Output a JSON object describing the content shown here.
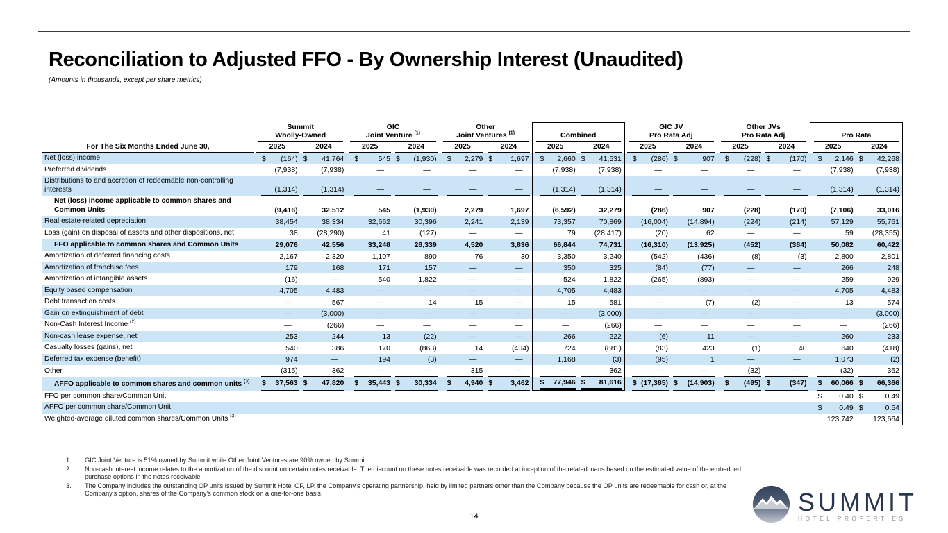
{
  "page": {
    "title": "Reconciliation to Adjusted FFO - By Ownership Interest (Unaudited)",
    "subtitle": "(Amounts in thousands, except per share metrics)",
    "page_number": "14"
  },
  "table": {
    "row_header": "For The Six Months Ended June 30,",
    "years": [
      "2025",
      "2024"
    ],
    "groups": [
      {
        "line1": "Summit",
        "line2": "Wholly-Owned",
        "sup": "",
        "boxed": false
      },
      {
        "line1": "GIC",
        "line2": "Joint Venture",
        "sup": "(1)",
        "boxed": false
      },
      {
        "line1": "Other",
        "line2": "Joint Ventures",
        "sup": "(1)",
        "boxed": false
      },
      {
        "line1": "",
        "line2": "Combined",
        "sup": "",
        "boxed": true
      },
      {
        "line1": "GIC JV",
        "line2": "Pro Rata Adj",
        "sup": "",
        "boxed": false
      },
      {
        "line1": "Other JVs",
        "line2": "Pro Rata Adj",
        "sup": "",
        "boxed": false
      },
      {
        "line1": "",
        "line2": "Pro Rata",
        "sup": "",
        "boxed": true
      }
    ],
    "rows": [
      {
        "label": "Net (loss) income",
        "sup": "",
        "bold": false,
        "indent": false,
        "shade": true,
        "dollar": true,
        "underline": "none",
        "values": [
          "(164)",
          "41,764",
          "545",
          "(1,930)",
          "2,279",
          "1,697",
          "2,660",
          "41,531",
          "(286)",
          "907",
          "(228)",
          "(170)",
          "2,146",
          "42,268"
        ]
      },
      {
        "label": "Preferred dividends",
        "sup": "",
        "bold": false,
        "indent": false,
        "shade": false,
        "dollar": false,
        "underline": "none",
        "values": [
          "(7,938)",
          "(7,938)",
          "—",
          "—",
          "—",
          "—",
          "(7,938)",
          "(7,938)",
          "—",
          "—",
          "—",
          "—",
          "(7,938)",
          "(7,938)"
        ]
      },
      {
        "label": "Distributions to and accretion of redeemable non-controlling interests",
        "sup": "",
        "bold": false,
        "indent": false,
        "shade": true,
        "dollar": false,
        "underline": "single",
        "values": [
          "(1,314)",
          "(1,314)",
          "—",
          "—",
          "—",
          "—",
          "(1,314)",
          "(1,314)",
          "—",
          "—",
          "—",
          "—",
          "(1,314)",
          "(1,314)"
        ]
      },
      {
        "label": "Net (loss) income applicable to common shares and Common Units",
        "sup": "",
        "bold": true,
        "indent": true,
        "shade": false,
        "dollar": false,
        "underline": "none",
        "values": [
          "(9,416)",
          "32,512",
          "545",
          "(1,930)",
          "2,279",
          "1,697",
          "(6,592)",
          "32,279",
          "(286)",
          "907",
          "(228)",
          "(170)",
          "(7,106)",
          "33,016"
        ]
      },
      {
        "label": "Real estate-related depreciation",
        "sup": "",
        "bold": false,
        "indent": false,
        "shade": true,
        "dollar": false,
        "underline": "none",
        "values": [
          "38,454",
          "38,334",
          "32,662",
          "30,396",
          "2,241",
          "2,139",
          "73,357",
          "70,869",
          "(16,004)",
          "(14,894)",
          "(224)",
          "(214)",
          "57,129",
          "55,761"
        ]
      },
      {
        "label": "Loss (gain) on disposal of assets and other dispositions, net",
        "sup": "",
        "bold": false,
        "indent": false,
        "shade": false,
        "dollar": false,
        "underline": "single",
        "values": [
          "38",
          "(28,290)",
          "41",
          "(127)",
          "—",
          "—",
          "79",
          "(28,417)",
          "(20)",
          "62",
          "—",
          "—",
          "59",
          "(28,355)"
        ]
      },
      {
        "label": "FFO applicable to common shares and Common Units",
        "sup": "",
        "bold": true,
        "indent": true,
        "shade": true,
        "dollar": false,
        "underline": "none",
        "values": [
          "29,076",
          "42,556",
          "33,248",
          "28,339",
          "4,520",
          "3,836",
          "66,844",
          "74,731",
          "(16,310)",
          "(13,925)",
          "(452)",
          "(384)",
          "50,082",
          "60,422"
        ]
      },
      {
        "label": "Amortization of deferred financing costs",
        "sup": "",
        "bold": false,
        "indent": false,
        "shade": false,
        "dollar": false,
        "underline": "none",
        "values": [
          "2,167",
          "2,320",
          "1,107",
          "890",
          "76",
          "30",
          "3,350",
          "3,240",
          "(542)",
          "(436)",
          "(8)",
          "(3)",
          "2,800",
          "2,801"
        ]
      },
      {
        "label": "Amortization of franchise fees",
        "sup": "",
        "bold": false,
        "indent": false,
        "shade": true,
        "dollar": false,
        "underline": "none",
        "values": [
          "179",
          "168",
          "171",
          "157",
          "—",
          "—",
          "350",
          "325",
          "(84)",
          "(77)",
          "—",
          "—",
          "266",
          "248"
        ]
      },
      {
        "label": "Amortization of intangible assets",
        "sup": "",
        "bold": false,
        "indent": false,
        "shade": false,
        "dollar": false,
        "underline": "none",
        "values": [
          "(16)",
          "—",
          "540",
          "1,822",
          "—",
          "—",
          "524",
          "1,822",
          "(265)",
          "(893)",
          "—",
          "—",
          "259",
          "929"
        ]
      },
      {
        "label": "Equity based compensation",
        "sup": "",
        "bold": false,
        "indent": false,
        "shade": true,
        "dollar": false,
        "underline": "none",
        "values": [
          "4,705",
          "4,483",
          "—",
          "—",
          "—",
          "—",
          "4,705",
          "4,483",
          "—",
          "—",
          "—",
          "—",
          "4,705",
          "4,483"
        ]
      },
      {
        "label": "Debt transaction costs",
        "sup": "",
        "bold": false,
        "indent": false,
        "shade": false,
        "dollar": false,
        "underline": "none",
        "values": [
          "—",
          "567",
          "—",
          "14",
          "15",
          "—",
          "15",
          "581",
          "—",
          "(7)",
          "(2)",
          "—",
          "13",
          "574"
        ]
      },
      {
        "label": "Gain on extinguishment of debt",
        "sup": "",
        "bold": false,
        "indent": false,
        "shade": true,
        "dollar": false,
        "underline": "none",
        "values": [
          "—",
          "(3,000)",
          "—",
          "—",
          "—",
          "—",
          "—",
          "(3,000)",
          "—",
          "—",
          "—",
          "—",
          "—",
          "(3,000)"
        ]
      },
      {
        "label": "Non-Cash Interest Income",
        "sup": "(2)",
        "bold": false,
        "indent": false,
        "shade": false,
        "dollar": false,
        "underline": "none",
        "values": [
          "—",
          "(266)",
          "—",
          "—",
          "—",
          "—",
          "—",
          "(266)",
          "—",
          "—",
          "—",
          "—",
          "—",
          "(266)"
        ]
      },
      {
        "label": "Non-cash lease expense, net",
        "sup": "",
        "bold": false,
        "indent": false,
        "shade": true,
        "dollar": false,
        "underline": "none",
        "values": [
          "253",
          "244",
          "13",
          "(22)",
          "—",
          "—",
          "266",
          "222",
          "(6)",
          "11",
          "—",
          "—",
          "260",
          "233"
        ]
      },
      {
        "label": "Casualty losses (gains), net",
        "sup": "",
        "bold": false,
        "indent": false,
        "shade": false,
        "dollar": false,
        "underline": "none",
        "values": [
          "540",
          "386",
          "170",
          "(863)",
          "14",
          "(404)",
          "724",
          "(881)",
          "(83)",
          "423",
          "(1)",
          "40",
          "640",
          "(418)"
        ]
      },
      {
        "label": "Deferred tax expense (benefit)",
        "sup": "",
        "bold": false,
        "indent": false,
        "shade": true,
        "dollar": false,
        "underline": "none",
        "values": [
          "974",
          "—",
          "194",
          "(3)",
          "—",
          "—",
          "1,168",
          "(3)",
          "(95)",
          "1",
          "—",
          "—",
          "1,073",
          "(2)"
        ]
      },
      {
        "label": "Other",
        "sup": "",
        "bold": false,
        "indent": false,
        "shade": false,
        "dollar": false,
        "underline": "single",
        "values": [
          "(315)",
          "362",
          "—",
          "—",
          "315",
          "—",
          "—",
          "362",
          "—",
          "—",
          "(32)",
          "—",
          "(32)",
          "362"
        ]
      },
      {
        "label": "AFFO applicable to common shares and common units",
        "sup": "(3)",
        "bold": true,
        "indent": true,
        "shade": true,
        "dollar": true,
        "underline": "double",
        "values": [
          "37,563",
          "47,820",
          "35,443",
          "30,334",
          "4,940",
          "3,462",
          "77,946",
          "81,616",
          "(17,385)",
          "(14,903)",
          "(495)",
          "(347)",
          "60,066",
          "66,366"
        ]
      },
      {
        "label": "FFO per common share/Common Unit",
        "sup": "",
        "bold": false,
        "indent": false,
        "shade": false,
        "dollar": true,
        "underline": "none",
        "values": [
          "",
          "",
          "",
          "",
          "",
          "",
          "",
          "",
          "",
          "",
          "",
          "",
          "0.40",
          "0.49"
        ]
      },
      {
        "label": "AFFO per common share/Common Unit",
        "sup": "",
        "bold": false,
        "indent": false,
        "shade": true,
        "dollar": true,
        "underline": "none",
        "values": [
          "",
          "",
          "",
          "",
          "",
          "",
          "",
          "",
          "",
          "",
          "",
          "",
          "0.49",
          "0.54"
        ]
      },
      {
        "label": "Weighted-average diluted common shares/Common Units",
        "sup": "(3)",
        "bold": false,
        "indent": false,
        "shade": false,
        "dollar": false,
        "underline": "none",
        "values": [
          "",
          "",
          "",
          "",
          "",
          "",
          "",
          "",
          "",
          "",
          "",
          "",
          "123,742",
          "123,664"
        ]
      }
    ]
  },
  "footnotes": [
    {
      "num": "1.",
      "text": "GIC Joint Venture is 51% owned by Summit while Other Joint Ventures are 90% owned by Summit."
    },
    {
      "num": "2.",
      "text": "Non-cash interest income relates to the amortization of the discount on certain notes receivable. The discount on these notes receivable was recorded at inception of the related loans based on the estimated value of the embedded purchase options in the notes receivable."
    },
    {
      "num": "3.",
      "text": "The Company includes the outstanding OP units issued by Summit Hotel OP, LP, the Company's operating partnership, held by limited partners other than the Company because the OP units are redeemable for cash or, at the Company's option, shares of the Company's common stock on a one-for-one basis."
    }
  ],
  "logo": {
    "name": "SUMMIT",
    "tagline": "HOTEL PROPERTIES"
  }
}
